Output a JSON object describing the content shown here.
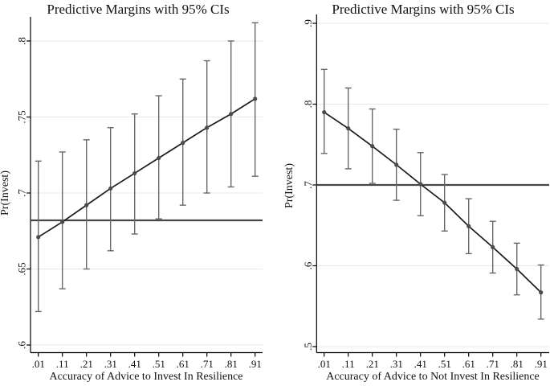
{
  "page": {
    "background": "#ffffff"
  },
  "chart_data": [
    {
      "type": "line",
      "panel": "left",
      "title": "Predictive Margins with 95% CIs",
      "xlabel": "Accuracy of Advice to Invest In Resilience",
      "ylabel": "Pr(Invest)",
      "x": [
        0.01,
        0.11,
        0.21,
        0.31,
        0.41,
        0.51,
        0.61,
        0.71,
        0.81,
        0.91
      ],
      "x_tick_labels": [
        ".01",
        ".11",
        ".21",
        ".31",
        ".41",
        ".51",
        ".61",
        ".71",
        ".81",
        ".91"
      ],
      "values": [
        0.671,
        0.681,
        0.692,
        0.703,
        0.713,
        0.723,
        0.733,
        0.743,
        0.752,
        0.762
      ],
      "ci_low": [
        0.622,
        0.637,
        0.65,
        0.662,
        0.673,
        0.683,
        0.692,
        0.7,
        0.704,
        0.711
      ],
      "ci_high": [
        0.721,
        0.727,
        0.735,
        0.743,
        0.752,
        0.764,
        0.775,
        0.787,
        0.8,
        0.812
      ],
      "ref_line": 0.682,
      "y_ticks": [
        0.6,
        0.65,
        0.7,
        0.75,
        0.8
      ],
      "y_tick_labels": [
        ".6",
        ".65",
        ".7",
        ".75",
        ".8"
      ],
      "ylim": [
        0.588,
        0.816
      ],
      "grid": true,
      "legend": "none"
    },
    {
      "type": "line",
      "panel": "right",
      "title": "Predictive Margins with 95% CIs",
      "xlabel": "Accuracy of Advice to Not Invest In Resilience",
      "ylabel": "Pr(Invest)",
      "x": [
        0.01,
        0.11,
        0.21,
        0.31,
        0.41,
        0.51,
        0.61,
        0.71,
        0.81,
        0.91
      ],
      "x_tick_labels": [
        ".01",
        ".11",
        ".21",
        ".31",
        ".41",
        ".51",
        ".61",
        ".71",
        ".81",
        ".91"
      ],
      "values": [
        0.79,
        0.77,
        0.748,
        0.725,
        0.701,
        0.678,
        0.649,
        0.623,
        0.596,
        0.567
      ],
      "ci_low": [
        0.739,
        0.72,
        0.702,
        0.681,
        0.662,
        0.643,
        0.615,
        0.591,
        0.564,
        0.534
      ],
      "ci_high": [
        0.843,
        0.82,
        0.794,
        0.769,
        0.74,
        0.713,
        0.683,
        0.655,
        0.628,
        0.601
      ],
      "ref_line": 0.7,
      "y_ticks": [
        0.5,
        0.6,
        0.7,
        0.8,
        0.9
      ],
      "y_tick_labels": [
        ".5",
        ".6",
        ".7",
        ".8",
        ".9"
      ],
      "ylim": [
        0.49,
        0.907
      ],
      "grid": true,
      "legend": "none"
    }
  ],
  "colors": {
    "series_line": "#1b1b1b",
    "marker": "#4b4b4b",
    "ci_whisker": "#686868",
    "reference_line": "#474747",
    "gridline": "#e7e7e7",
    "axis": "#000000",
    "text": "#111111"
  }
}
